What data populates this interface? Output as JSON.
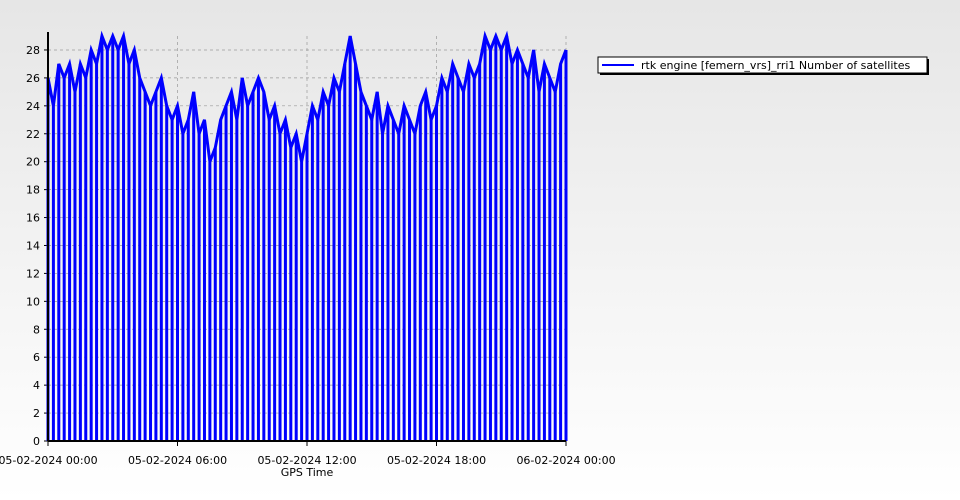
{
  "chart_data": {
    "type": "line",
    "drop_lines": true,
    "grid": true,
    "legend": "top-right",
    "x_label": "GPS Time",
    "x": [
      0,
      0.25,
      0.5,
      0.75,
      1,
      1.25,
      1.5,
      1.75,
      2,
      2.25,
      2.5,
      2.75,
      3,
      3.25,
      3.5,
      3.75,
      4,
      4.25,
      4.5,
      4.75,
      5,
      5.25,
      5.5,
      5.75,
      6,
      6.25,
      6.5,
      6.75,
      7,
      7.25,
      7.5,
      7.75,
      8,
      8.25,
      8.5,
      8.75,
      9,
      9.25,
      9.5,
      9.75,
      10,
      10.25,
      10.5,
      10.75,
      11,
      11.25,
      11.5,
      11.75,
      12,
      12.25,
      12.5,
      12.75,
      13,
      13.25,
      13.5,
      13.75,
      14,
      14.25,
      14.5,
      14.75,
      15,
      15.25,
      15.5,
      15.75,
      16,
      16.25,
      16.5,
      16.75,
      17,
      17.25,
      17.5,
      17.75,
      18,
      18.25,
      18.5,
      18.75,
      19,
      19.25,
      19.5,
      19.75,
      20,
      20.25,
      20.5,
      20.75,
      21,
      21.25,
      21.5,
      21.75,
      22,
      22.25,
      22.5,
      22.75,
      23,
      23.25,
      23.5,
      23.75,
      24
    ],
    "series": [
      {
        "name": "rtk engine [femern_vrs]_rri1 Number of satellites",
        "color": "#0000ff",
        "values": [
          26,
          24,
          27,
          26,
          27,
          25,
          27,
          26,
          28,
          27,
          29,
          28,
          29,
          28,
          29,
          27,
          28,
          26,
          25,
          24,
          25,
          26,
          24,
          23,
          24,
          22,
          23,
          25,
          22,
          23,
          20,
          21,
          23,
          24,
          25,
          23,
          26,
          24,
          25,
          26,
          25,
          23,
          24,
          22,
          23,
          21,
          22,
          20,
          22,
          24,
          23,
          25,
          24,
          26,
          25,
          27,
          29,
          27,
          25,
          24,
          23,
          25,
          22,
          24,
          23,
          22,
          24,
          23,
          22,
          24,
          25,
          23,
          24,
          26,
          25,
          27,
          26,
          25,
          27,
          26,
          27,
          29,
          28,
          29,
          28,
          29,
          27,
          28,
          27,
          26,
          28,
          25,
          27,
          26,
          25,
          27,
          28
        ]
      }
    ],
    "xlim": [
      0,
      24
    ],
    "xticks": [
      {
        "value": 0,
        "label": "05-02-2024 00:00"
      },
      {
        "value": 6,
        "label": "05-02-2024 06:00"
      },
      {
        "value": 12,
        "label": "05-02-2024 12:00"
      },
      {
        "value": 18,
        "label": "05-02-2024 18:00"
      },
      {
        "value": 24,
        "label": "06-02-2024 00:00"
      }
    ],
    "ylim": [
      0,
      29
    ],
    "yticks": [
      0,
      2,
      4,
      6,
      8,
      10,
      12,
      14,
      16,
      18,
      20,
      22,
      24,
      26,
      28
    ]
  }
}
